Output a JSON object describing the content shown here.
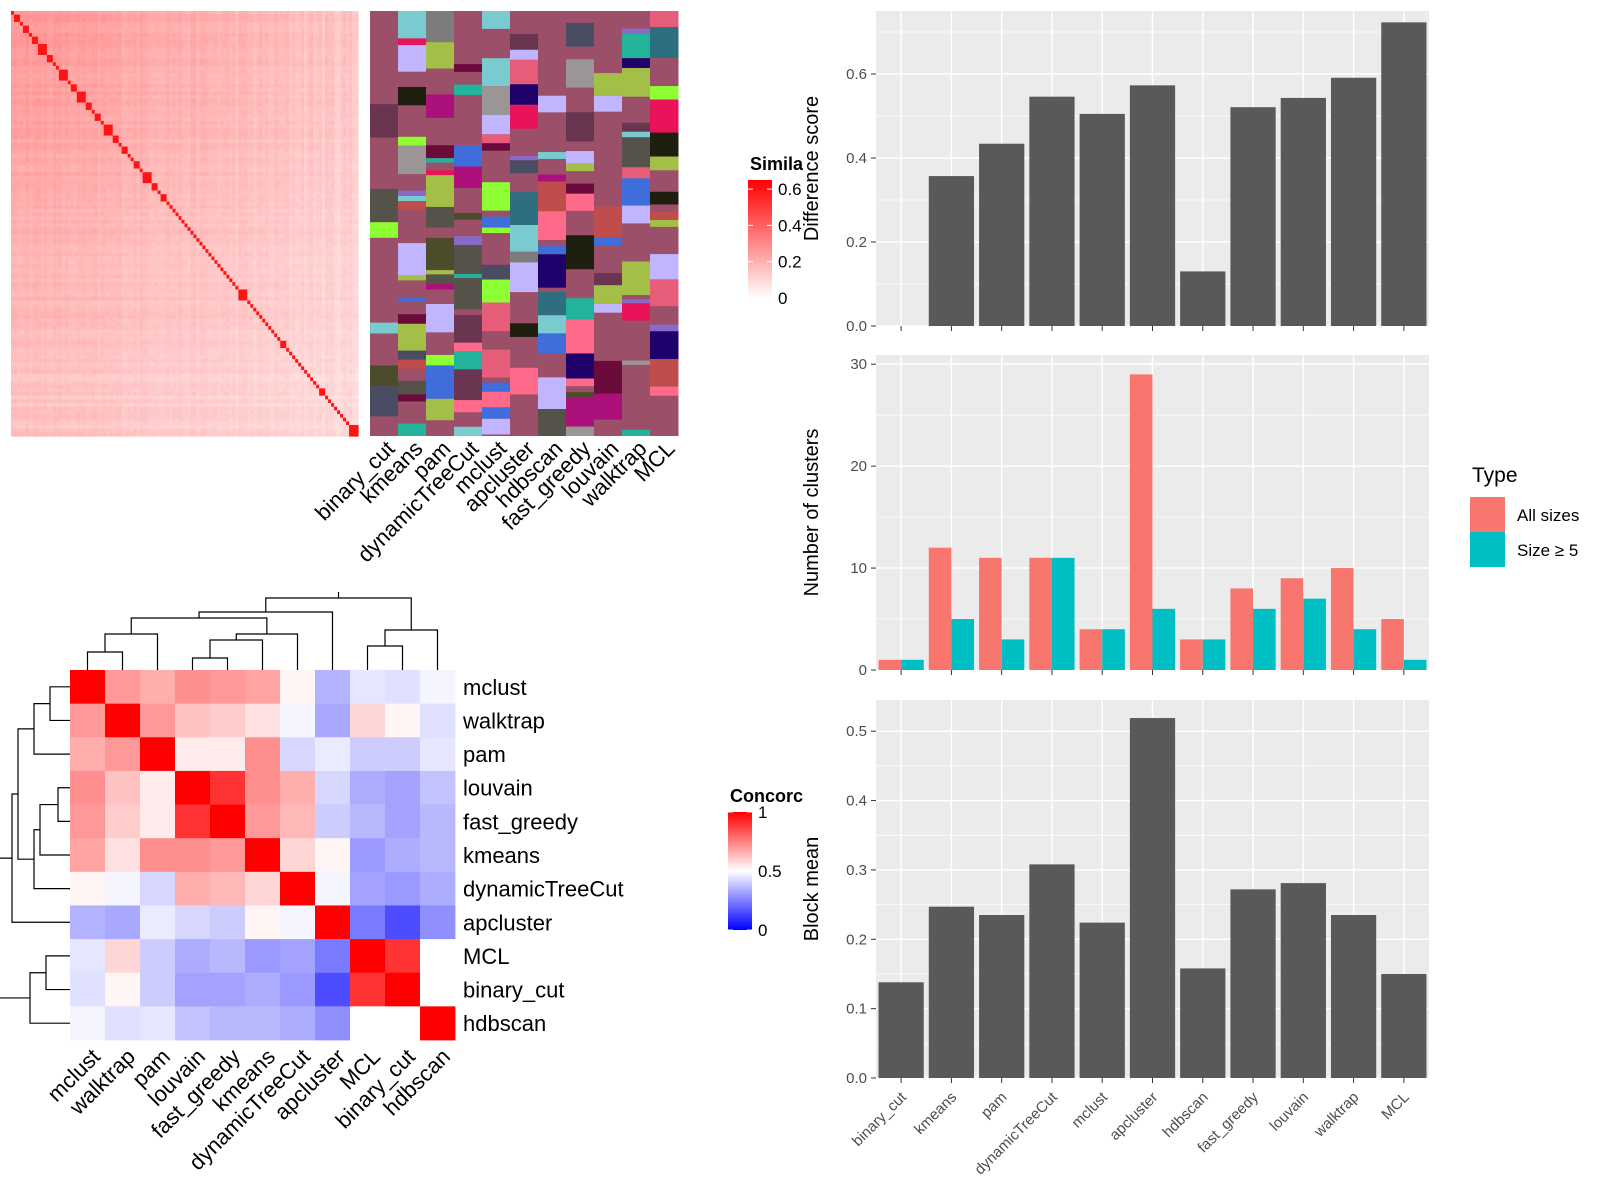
{
  "colors": {
    "panel_bg": "#ebebeb",
    "grid": "#ffffff",
    "bar_fill": "#595959",
    "all_sizes": "#f8766d",
    "size_ge5": "#00bfc4",
    "sim_high": "#ff0000",
    "sim_low": "#ffffff",
    "conc_high": "#ff0000",
    "conc_mid": "#ffffff",
    "conc_low": "#0000ff"
  },
  "similarity_heatmap": {
    "legend_title": "Simila",
    "legend_ticks": [
      {
        "value": 0.6,
        "label": "0.6"
      },
      {
        "value": 0.4,
        "label": "0.4"
      },
      {
        "value": 0.2,
        "label": "0.2"
      },
      {
        "value": 0,
        "label": "0"
      }
    ],
    "scale_max": 0.65,
    "n_cells": 100,
    "block_sizes": [
      1,
      2,
      1,
      2,
      1,
      2,
      3,
      2,
      1,
      1,
      3,
      1,
      2,
      3,
      2,
      1,
      2,
      1,
      3,
      2,
      1,
      2,
      1,
      1,
      2,
      1,
      3,
      2,
      1,
      2,
      1,
      1,
      1,
      1,
      1,
      1,
      1,
      1,
      1,
      1,
      1,
      1,
      1,
      1,
      1,
      1,
      1,
      1,
      1,
      1,
      1,
      1,
      1,
      1,
      3,
      1,
      1,
      1,
      1,
      1,
      1,
      1,
      1,
      1,
      1,
      1,
      2,
      1,
      1,
      1,
      1,
      1,
      1,
      1,
      1,
      1,
      1,
      1,
      2,
      1,
      1,
      1,
      1,
      1,
      1,
      1,
      1,
      3
    ]
  },
  "cluster_annotation": {
    "methods": [
      "binary_cut",
      "kmeans",
      "pam",
      "dynamicTreeCut",
      "mclust",
      "apcluster",
      "hdbscan",
      "fast_greedy",
      "louvain",
      "walktrap",
      "MCL"
    ],
    "base_color": "#9b4f68",
    "palette": [
      "#4b4c2a",
      "#1e1f0e",
      "#20006a",
      "#c1b5ff",
      "#e9135a",
      "#6b0b3c",
      "#8b69c8",
      "#23b29a",
      "#ac117b",
      "#4a4c61",
      "#9b9595",
      "#7e7b7c",
      "#a3bf47",
      "#8eff35",
      "#6a3550",
      "#c04c4b",
      "#ff6a8a",
      "#3f6edb",
      "#2e6e7f",
      "#7acbd0",
      "#55524a",
      "#e55d79"
    ]
  },
  "concordance_heatmap": {
    "legend_title": "Concorc",
    "legend_ticks": [
      {
        "value": 1,
        "label": "1"
      },
      {
        "value": 0.5,
        "label": "0.5"
      },
      {
        "value": 0,
        "label": "0"
      }
    ],
    "rows": [
      "mclust",
      "walktrap",
      "pam",
      "louvain",
      "fast_greedy",
      "kmeans",
      "dynamicTreeCut",
      "apcluster",
      "MCL",
      "binary_cut",
      "hdbscan"
    ],
    "cols": [
      "mclust",
      "walktrap",
      "pam",
      "louvain",
      "fast_greedy",
      "kmeans",
      "dynamicTreeCut",
      "apcluster",
      "MCL",
      "binary_cut",
      "hdbscan"
    ],
    "values": [
      [
        1.0,
        0.7,
        0.66,
        0.72,
        0.7,
        0.68,
        0.52,
        0.35,
        0.45,
        0.44,
        0.48
      ],
      [
        0.7,
        1.0,
        0.7,
        0.62,
        0.6,
        0.56,
        0.48,
        0.33,
        0.58,
        0.52,
        0.44
      ],
      [
        0.66,
        0.7,
        1.0,
        0.54,
        0.54,
        0.72,
        0.42,
        0.46,
        0.4,
        0.4,
        0.45
      ],
      [
        0.72,
        0.62,
        0.54,
        1.0,
        0.9,
        0.72,
        0.66,
        0.42,
        0.34,
        0.32,
        0.38
      ],
      [
        0.7,
        0.6,
        0.54,
        0.9,
        1.0,
        0.7,
        0.64,
        0.4,
        0.36,
        0.32,
        0.36
      ],
      [
        0.68,
        0.56,
        0.72,
        0.72,
        0.7,
        1.0,
        0.58,
        0.52,
        0.3,
        0.34,
        0.36
      ],
      [
        0.52,
        0.48,
        0.42,
        0.66,
        0.64,
        0.58,
        1.0,
        0.48,
        0.32,
        0.3,
        0.34
      ],
      [
        0.35,
        0.33,
        0.46,
        0.42,
        0.4,
        0.52,
        0.48,
        1.0,
        0.24,
        0.15,
        0.28
      ],
      [
        0.45,
        0.58,
        0.4,
        0.34,
        0.36,
        0.3,
        0.32,
        0.24,
        1.0,
        0.9,
        0.5
      ],
      [
        0.44,
        0.52,
        0.4,
        0.32,
        0.32,
        0.34,
        0.3,
        0.15,
        0.9,
        1.0,
        0.5
      ],
      [
        0.48,
        0.44,
        0.45,
        0.38,
        0.36,
        0.36,
        0.34,
        0.28,
        0.5,
        0.5,
        1.0
      ]
    ]
  },
  "chart_data": [
    {
      "type": "bar",
      "ylabel": "Difference score",
      "categories": [
        "binary_cut",
        "kmeans",
        "pam",
        "dynamicTreeCut",
        "mclust",
        "apcluster",
        "hdbscan",
        "fast_greedy",
        "louvain",
        "walktrap",
        "MCL"
      ],
      "values": [
        0.0,
        0.357,
        0.434,
        0.546,
        0.505,
        0.573,
        0.13,
        0.521,
        0.543,
        0.591,
        0.723
      ],
      "ylim": [
        0,
        0.75
      ],
      "yticks": [
        0.0,
        0.2,
        0.4,
        0.6
      ],
      "ytick_labels": [
        "0.0",
        "0.2",
        "0.4",
        "0.6"
      ],
      "grid": true
    },
    {
      "type": "bar",
      "ylabel": "Number of clusters",
      "categories": [
        "binary_cut",
        "kmeans",
        "pam",
        "dynamicTreeCut",
        "mclust",
        "apcluster",
        "hdbscan",
        "fast_greedy",
        "louvain",
        "walktrap",
        "MCL"
      ],
      "series": [
        {
          "name": "All sizes",
          "values": [
            1,
            12,
            11,
            11,
            4,
            29,
            3,
            8,
            9,
            10,
            5
          ]
        },
        {
          "name": "Size ≥ 5",
          "values": [
            1,
            5,
            3,
            11,
            4,
            6,
            3,
            6,
            7,
            4,
            1
          ]
        }
      ],
      "legend_title": "Type",
      "legend_position": "right",
      "ylim": [
        0,
        30.9
      ],
      "yticks": [
        0,
        10,
        20,
        30
      ],
      "ytick_labels": [
        "0",
        "10",
        "20",
        "30"
      ],
      "grid": true
    },
    {
      "type": "bar",
      "ylabel": "Block mean",
      "categories": [
        "binary_cut",
        "kmeans",
        "pam",
        "dynamicTreeCut",
        "mclust",
        "apcluster",
        "hdbscan",
        "fast_greedy",
        "louvain",
        "walktrap",
        "MCL"
      ],
      "values": [
        0.138,
        0.247,
        0.235,
        0.308,
        0.224,
        0.519,
        0.158,
        0.272,
        0.281,
        0.235,
        0.15
      ],
      "ylim": [
        0,
        0.545
      ],
      "yticks": [
        0.0,
        0.1,
        0.2,
        0.3,
        0.4,
        0.5
      ],
      "ytick_labels": [
        "0.0",
        "0.1",
        "0.2",
        "0.3",
        "0.4",
        "0.5"
      ],
      "grid": true
    }
  ]
}
